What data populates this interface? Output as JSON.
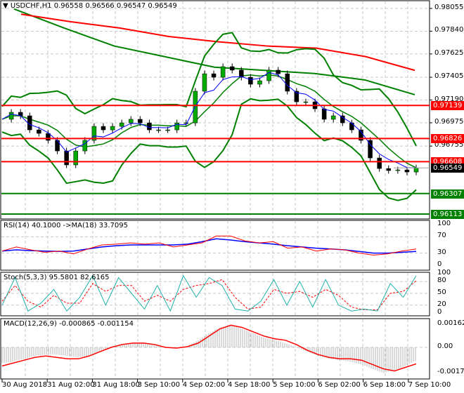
{
  "header": {
    "symbol": "USDCHF,H1",
    "open": "0.96558",
    "high": "0.96566",
    "low": "0.96547",
    "close": "0.96549"
  },
  "price_axis": [
    "0.98055",
    "0.97840",
    "0.97625",
    "0.97405",
    "0.97190",
    "0.96975",
    "0.96755"
  ],
  "levels": [
    {
      "label": "0.97139",
      "value": 0.97139,
      "color": "#ff0000"
    },
    {
      "label": "0.96826",
      "value": 0.96826,
      "color": "#ff0000"
    },
    {
      "label": "0.96608",
      "value": 0.96608,
      "color": "#ff0000"
    },
    {
      "label": "0.96307",
      "value": 0.96307,
      "color": "#008000"
    },
    {
      "label": "0.96113",
      "value": 0.96113,
      "color": "#008000"
    }
  ],
  "current_price": {
    "label": "0.96549",
    "value": 0.96549
  },
  "time_axis": [
    "30 Aug 2018",
    "31 Aug 02:00",
    "31 Aug 18:00",
    "3 Sep 10:00",
    "4 Sep 02:00",
    "4 Sep 18:00",
    "5 Sep 10:00",
    "6 Sep 02:00",
    "6 Sep 18:00",
    "7 Sep 10:00"
  ],
  "rsi": {
    "title": "RSI(14) 40.1000  ->MA(18) 33.7095",
    "axis": [
      "100",
      "70",
      "30",
      "0"
    ]
  },
  "stoch": {
    "title": "Stoch(5,3,3) 95.5801 82.6165",
    "axis": [
      "100",
      "80",
      "50",
      "20",
      "0"
    ]
  },
  "macd": {
    "title": "MACD(12,26,9) -0.000865 -0.001154",
    "axis": [
      "0.00162",
      "0.00",
      "-0.001774"
    ]
  },
  "chart_data": [
    {
      "type": "line",
      "name": "USDCHF,H1",
      "ylim": [
        0.96113,
        0.98055
      ],
      "close": [
        0.97008,
        0.97074,
        0.97041,
        0.96908,
        0.96875,
        0.96809,
        0.96709,
        0.96577,
        0.96709,
        0.96809,
        0.96941,
        0.96908,
        0.96941,
        0.96974,
        0.97008,
        0.96974,
        0.96908,
        0.96908,
        0.96908,
        0.96974,
        0.96974,
        0.97273,
        0.97438,
        0.97405,
        0.97505,
        0.97472,
        0.97405,
        0.97339,
        0.97372,
        0.97472,
        0.97438,
        0.97273,
        0.97173,
        0.97173,
        0.97107,
        0.97008,
        0.97041,
        0.96974,
        0.96908,
        0.96809,
        0.96643,
        0.96543,
        0.96524,
        0.9653,
        0.9651,
        0.96549
      ],
      "ma_slow_red": [
        0.98,
        0.9793,
        0.9787,
        0.9779,
        0.9774,
        0.977,
        0.9768,
        0.976,
        0.9747
      ],
      "ma_slow_green": [
        0.9805,
        0.9787,
        0.977,
        0.976,
        0.975,
        0.9747,
        0.9744,
        0.9738,
        0.9724
      ]
    },
    {
      "type": "line",
      "name": "RSI",
      "ylim": [
        0,
        100
      ],
      "rsi": [
        35,
        45,
        38,
        32,
        35,
        28,
        40,
        50,
        52,
        55,
        52,
        55,
        45,
        50,
        55,
        72,
        72,
        60,
        55,
        58,
        42,
        45,
        35,
        40,
        38,
        30,
        25,
        28,
        35,
        40
      ],
      "ma": [
        35,
        38,
        36,
        35,
        34,
        35,
        40,
        45,
        48,
        50,
        50,
        50,
        50,
        52,
        58,
        65,
        62,
        58,
        55,
        52,
        48,
        45,
        42,
        40,
        38,
        34,
        30,
        30,
        32,
        34
      ]
    },
    {
      "type": "line",
      "name": "Stochastic",
      "ylim": [
        0,
        100
      ],
      "main": [
        20,
        90,
        5,
        25,
        60,
        5,
        40,
        95,
        20,
        90,
        50,
        10,
        70,
        5,
        95,
        40,
        90,
        70,
        10,
        5,
        30,
        85,
        20,
        80,
        15,
        85,
        20,
        5,
        10,
        5,
        75,
        40,
        95
      ],
      "signal": [
        30,
        70,
        30,
        15,
        45,
        25,
        25,
        75,
        55,
        70,
        70,
        30,
        45,
        30,
        60,
        70,
        75,
        85,
        40,
        10,
        15,
        60,
        50,
        55,
        40,
        60,
        45,
        15,
        8,
        8,
        50,
        55,
        82
      ]
    },
    {
      "type": "bar",
      "name": "MACD",
      "ylim": [
        -0.001774,
        0.00162
      ],
      "histogram": [
        -0.0011,
        -0.001,
        -0.0008,
        -0.0006,
        -0.0005,
        -0.0005,
        -0.0006,
        -0.0007,
        -0.0006,
        -0.0003,
        0,
        0.0002,
        0.0003,
        0.0003,
        0.0002,
        0,
        -5e-05,
        0.0001,
        0.0005,
        0.001,
        0.0014,
        0.00155,
        0.0013,
        0.001,
        0.0007,
        0.0005,
        0.0003,
        0,
        -0.0003,
        -0.0006,
        -0.0008,
        -0.0009,
        -0.001,
        -0.0012,
        -0.0015,
        -0.0018,
        -0.0016,
        -0.0013,
        -0.0009
      ],
      "signal": [
        -0.0013,
        -0.0011,
        -0.0009,
        -0.0007,
        -0.0006,
        -0.0007,
        -0.0008,
        -0.0008,
        -0.0006,
        -0.0003,
        0,
        0.0002,
        0.0003,
        0.0003,
        0.0002,
        0,
        -5e-05,
        5e-05,
        0.0003,
        0.0008,
        0.0013,
        0.00155,
        0.0014,
        0.0011,
        0.0008,
        0.0006,
        0.0005,
        0.0002,
        -0.0002,
        -0.0005,
        -0.0007,
        -0.0008,
        -0.0008,
        -0.0009,
        -0.0012,
        -0.0015,
        -0.00165,
        -0.0014,
        -0.00115
      ]
    }
  ]
}
